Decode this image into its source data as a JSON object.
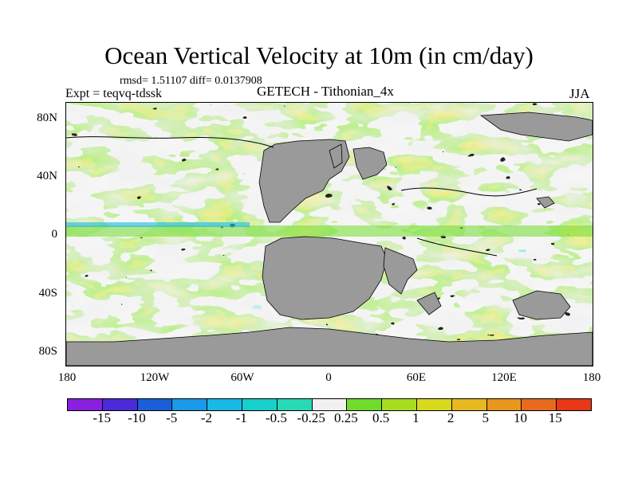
{
  "title": "Ocean Vertical Velocity at 10m (in cm/day)",
  "stats": "rmsd= 1.51107 diff= 0.0137908",
  "expt": "Expt = teqvq-tdssk",
  "center_title": "GETECH - Tithonian_4x",
  "season": "JJA",
  "lat_labels": [
    "80N",
    "40N",
    "0",
    "40S",
    "80S"
  ],
  "lon_labels": [
    "180",
    "120W",
    "60W",
    "0",
    "60E",
    "120E",
    "180"
  ],
  "colors": {
    "land": "#9a9a9a",
    "ocean_neutral": "#f0f0f0"
  },
  "colorbar": {
    "colors": [
      "#8a1fe0",
      "#4b2ad8",
      "#1a5fd8",
      "#1a9ae8",
      "#19b8e6",
      "#17d0cc",
      "#28d9b6",
      "#f0f0f0",
      "#6fdc2c",
      "#a8dc20",
      "#d8d81c",
      "#e8b820",
      "#e8961e",
      "#e86a1e",
      "#e83818"
    ],
    "labels": [
      "-15",
      "-10",
      "-5",
      "-2",
      "-1",
      "-0.5",
      "-0.25",
      "0.25",
      "0.5",
      "1",
      "2",
      "5",
      "10",
      "15"
    ]
  }
}
